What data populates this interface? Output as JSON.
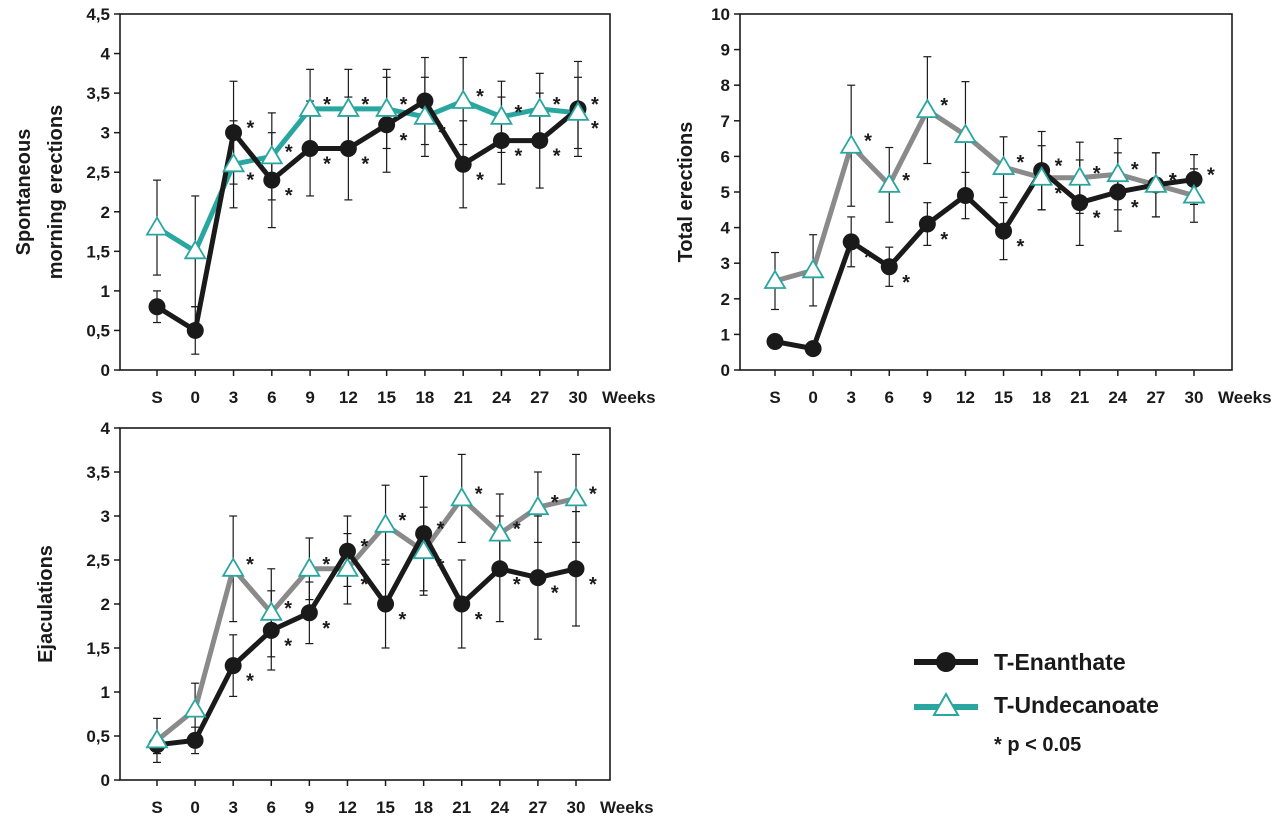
{
  "legend": {
    "series1": "T-Enanthate",
    "series2": "T-Undecanoate",
    "note": "* p < 0.05",
    "series1_color": "#1a1a1a",
    "series2_color": "#2aa6a0"
  },
  "chart_data": [
    {
      "type": "line",
      "ylabel_line1": "Spontaneous",
      "ylabel_line2": "morning erections",
      "xlabel": "Weeks",
      "categories": [
        "S",
        "0",
        "3",
        "6",
        "9",
        "12",
        "15",
        "18",
        "21",
        "24",
        "27",
        "30"
      ],
      "ylim": [
        0,
        4.5
      ],
      "yticks": [
        "0",
        "0,5",
        "1",
        "1,5",
        "2",
        "2,5",
        "3",
        "3,5",
        "4",
        "4,5"
      ],
      "series2_line_color": "#2aa6a0",
      "series": [
        {
          "name": "T-Enanthate",
          "values": [
            0.8,
            0.5,
            3.0,
            2.4,
            2.8,
            2.8,
            3.1,
            3.4,
            2.6,
            2.9,
            2.9,
            3.3
          ],
          "err": [
            0.2,
            0.3,
            0.65,
            0.6,
            0.6,
            0.65,
            0.6,
            0.55,
            0.55,
            0.55,
            0.6,
            0.6
          ],
          "stars": [
            false,
            false,
            true,
            true,
            true,
            true,
            true,
            false,
            true,
            true,
            true,
            true
          ]
        },
        {
          "name": "T-Undecanoate",
          "values": [
            1.8,
            1.5,
            2.6,
            2.7,
            3.3,
            3.3,
            3.3,
            3.2,
            3.4,
            3.2,
            3.3,
            3.25
          ],
          "err": [
            0.6,
            0.7,
            0.55,
            0.55,
            0.5,
            0.5,
            0.5,
            0.5,
            0.55,
            0.45,
            0.45,
            0.45
          ],
          "stars": [
            false,
            false,
            true,
            true,
            true,
            true,
            true,
            true,
            true,
            true,
            true,
            true
          ]
        }
      ]
    },
    {
      "type": "line",
      "ylabel_line1": "Total erections",
      "ylabel_line2": "",
      "xlabel": "Weeks",
      "categories": [
        "S",
        "0",
        "3",
        "6",
        "9",
        "12",
        "15",
        "18",
        "21",
        "24",
        "27",
        "30"
      ],
      "ylim": [
        0,
        10
      ],
      "yticks": [
        "0",
        "1",
        "2",
        "3",
        "4",
        "5",
        "6",
        "7",
        "8",
        "9",
        "10"
      ],
      "series2_line_color": "#8a8a8a",
      "series": [
        {
          "name": "T-Enanthate",
          "values": [
            0.8,
            0.6,
            3.6,
            2.9,
            4.1,
            4.9,
            3.9,
            5.6,
            4.7,
            5.0,
            5.2,
            5.35
          ],
          "err": [
            0,
            0,
            0.7,
            0.55,
            0.6,
            0.65,
            0.8,
            1.1,
            1.2,
            1.1,
            0.9,
            0.7
          ],
          "stars": [
            false,
            false,
            true,
            true,
            true,
            false,
            true,
            true,
            true,
            true,
            true,
            true
          ]
        },
        {
          "name": "T-Undecanoate",
          "values": [
            2.5,
            2.8,
            6.3,
            5.2,
            7.3,
            6.6,
            5.7,
            5.4,
            5.4,
            5.5,
            5.2,
            4.9
          ],
          "err": [
            0.8,
            1.0,
            1.7,
            1.05,
            1.5,
            1.5,
            0.85,
            0.9,
            1.0,
            1.0,
            0.9,
            0.75
          ],
          "stars": [
            false,
            false,
            true,
            true,
            true,
            false,
            true,
            true,
            true,
            true,
            true,
            false
          ]
        }
      ]
    },
    {
      "type": "line",
      "ylabel_line1": "Ejaculations",
      "ylabel_line2": "",
      "xlabel": "Weeks",
      "categories": [
        "S",
        "0",
        "3",
        "6",
        "9",
        "12",
        "15",
        "18",
        "21",
        "24",
        "27",
        "30"
      ],
      "ylim": [
        0,
        4
      ],
      "yticks": [
        "0",
        "0,5",
        "1",
        "1,5",
        "2",
        "2,5",
        "3",
        "3,5",
        "4"
      ],
      "series2_line_color": "#8a8a8a",
      "series": [
        {
          "name": "T-Enanthate",
          "values": [
            0.4,
            0.45,
            1.3,
            1.7,
            1.9,
            2.6,
            2.0,
            2.8,
            2.0,
            2.4,
            2.3,
            2.4
          ],
          "err": [
            0.1,
            0.15,
            0.35,
            0.45,
            0.35,
            0.4,
            0.5,
            0.65,
            0.5,
            0.6,
            0.7,
            0.65
          ],
          "stars": [
            false,
            false,
            true,
            true,
            true,
            true,
            true,
            true,
            true,
            true,
            true,
            true
          ]
        },
        {
          "name": "T-Undecanoate",
          "values": [
            0.45,
            0.8,
            2.4,
            1.9,
            2.4,
            2.4,
            2.9,
            2.6,
            3.2,
            2.8,
            3.1,
            3.2
          ],
          "err": [
            0.25,
            0.3,
            0.6,
            0.5,
            0.35,
            0.4,
            0.45,
            0.5,
            0.5,
            0.45,
            0.4,
            0.5
          ],
          "stars": [
            false,
            false,
            true,
            true,
            true,
            true,
            true,
            true,
            true,
            true,
            true,
            true
          ]
        }
      ]
    }
  ]
}
